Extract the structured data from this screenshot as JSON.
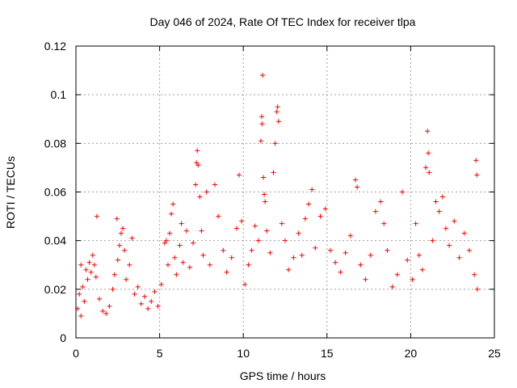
{
  "chart_data": {
    "type": "scatter",
    "title": "Day 046 of 2024, Rate Of TEC Index for receiver tlpa",
    "xlabel": "GPS time / hours",
    "ylabel": "ROTI / TECUs",
    "xlim": [
      0,
      25
    ],
    "ylim": [
      0,
      0.12
    ],
    "xticks": [
      0,
      5,
      10,
      15,
      20,
      25
    ],
    "xtick_labels": [
      "0",
      "5",
      "10",
      "15",
      "20",
      "25"
    ],
    "yticks": [
      0,
      0.02,
      0.04,
      0.06,
      0.08,
      0.1,
      0.12
    ],
    "ytick_labels": [
      "0",
      "0.02",
      "0.04",
      "0.06",
      "0.08",
      "0.1",
      "0.12"
    ],
    "grid": true,
    "marker": "plus",
    "color": "#ff0000",
    "series": [
      {
        "name": "ROTI",
        "points": [
          [
            0.1,
            0.012
          ],
          [
            0.2,
            0.018
          ],
          [
            0.3,
            0.009
          ],
          [
            0.4,
            0.021
          ],
          [
            0.5,
            0.015
          ],
          [
            0.6,
            0.028
          ],
          [
            0.7,
            0.024
          ],
          [
            0.8,
            0.031
          ],
          [
            0.9,
            0.027
          ],
          [
            1.0,
            0.034
          ],
          [
            1.1,
            0.03
          ],
          [
            1.2,
            0.025
          ],
          [
            1.25,
            0.05
          ],
          [
            1.4,
            0.016
          ],
          [
            1.6,
            0.011
          ],
          [
            1.8,
            0.01
          ],
          [
            2.0,
            0.013
          ],
          [
            2.2,
            0.02
          ],
          [
            2.3,
            0.026
          ],
          [
            2.45,
            0.049
          ],
          [
            2.5,
            0.032
          ],
          [
            2.6,
            0.038
          ],
          [
            2.7,
            0.043
          ],
          [
            2.8,
            0.045
          ],
          [
            2.9,
            0.036
          ],
          [
            3.0,
            0.024
          ],
          [
            3.2,
            0.03
          ],
          [
            3.35,
            0.041
          ],
          [
            3.5,
            0.018
          ],
          [
            3.7,
            0.021
          ],
          [
            3.9,
            0.014
          ],
          [
            4.1,
            0.017
          ],
          [
            4.3,
            0.012
          ],
          [
            4.5,
            0.015
          ],
          [
            4.7,
            0.019
          ],
          [
            4.9,
            0.013
          ],
          [
            5.1,
            0.022
          ],
          [
            5.3,
            0.039
          ],
          [
            5.4,
            0.04
          ],
          [
            5.5,
            0.03
          ],
          [
            5.6,
            0.043
          ],
          [
            5.7,
            0.051
          ],
          [
            5.8,
            0.055
          ],
          [
            5.9,
            0.033
          ],
          [
            6.0,
            0.026
          ],
          [
            6.2,
            0.038
          ],
          [
            6.4,
            0.031
          ],
          [
            6.6,
            0.044
          ],
          [
            6.8,
            0.029
          ],
          [
            7.0,
            0.039
          ],
          [
            7.15,
            0.063
          ],
          [
            7.2,
            0.072
          ],
          [
            7.25,
            0.077
          ],
          [
            7.3,
            0.071
          ],
          [
            7.4,
            0.058
          ],
          [
            7.5,
            0.044
          ],
          [
            7.6,
            0.034
          ],
          [
            7.8,
            0.06
          ],
          [
            8.0,
            0.03
          ],
          [
            8.3,
            0.063
          ],
          [
            8.5,
            0.05
          ],
          [
            8.8,
            0.036
          ],
          [
            9.0,
            0.027
          ],
          [
            9.3,
            0.033
          ],
          [
            9.6,
            0.045
          ],
          [
            9.75,
            0.067
          ],
          [
            9.9,
            0.048
          ],
          [
            10.1,
            0.022
          ],
          [
            10.3,
            0.03
          ],
          [
            10.5,
            0.036
          ],
          [
            10.7,
            0.046
          ],
          [
            10.9,
            0.04
          ],
          [
            11.05,
            0.081
          ],
          [
            11.1,
            0.091
          ],
          [
            11.12,
            0.088
          ],
          [
            11.15,
            0.108
          ],
          [
            11.2,
            0.066
          ],
          [
            11.25,
            0.059
          ],
          [
            11.3,
            0.056
          ],
          [
            11.4,
            0.044
          ],
          [
            11.6,
            0.035
          ],
          [
            11.8,
            0.068
          ],
          [
            11.9,
            0.08
          ],
          [
            12.0,
            0.093
          ],
          [
            12.05,
            0.095
          ],
          [
            12.1,
            0.089
          ],
          [
            12.3,
            0.047
          ],
          [
            12.5,
            0.04
          ],
          [
            12.7,
            0.028
          ],
          [
            13.0,
            0.033
          ],
          [
            13.3,
            0.043
          ],
          [
            13.5,
            0.034
          ],
          [
            13.7,
            0.049
          ],
          [
            13.9,
            0.055
          ],
          [
            14.1,
            0.061
          ],
          [
            14.3,
            0.037
          ],
          [
            14.6,
            0.05
          ],
          [
            14.9,
            0.053
          ],
          [
            15.2,
            0.036
          ],
          [
            15.5,
            0.031
          ],
          [
            15.8,
            0.027
          ],
          [
            16.1,
            0.035
          ],
          [
            16.4,
            0.042
          ],
          [
            16.7,
            0.065
          ],
          [
            16.8,
            0.062
          ],
          [
            17.0,
            0.03
          ],
          [
            17.3,
            0.024
          ],
          [
            17.6,
            0.034
          ],
          [
            17.9,
            0.052
          ],
          [
            18.2,
            0.056
          ],
          [
            18.4,
            0.047
          ],
          [
            18.6,
            0.036
          ],
          [
            18.9,
            0.021
          ],
          [
            19.2,
            0.026
          ],
          [
            19.5,
            0.06
          ],
          [
            19.8,
            0.032
          ],
          [
            20.1,
            0.024
          ],
          [
            20.3,
            0.047
          ],
          [
            20.5,
            0.034
          ],
          [
            20.7,
            0.028
          ],
          [
            20.9,
            0.07
          ],
          [
            21.0,
            0.085
          ],
          [
            21.05,
            0.076
          ],
          [
            21.1,
            0.068
          ],
          [
            21.3,
            0.04
          ],
          [
            21.5,
            0.056
          ],
          [
            21.7,
            0.052
          ],
          [
            21.9,
            0.058
          ],
          [
            22.1,
            0.045
          ],
          [
            22.3,
            0.038
          ],
          [
            22.6,
            0.048
          ],
          [
            22.9,
            0.033
          ],
          [
            23.2,
            0.043
          ],
          [
            23.5,
            0.036
          ],
          [
            23.8,
            0.026
          ],
          [
            23.9,
            0.073
          ],
          [
            23.95,
            0.067
          ],
          [
            23.98,
            0.02
          ],
          [
            0.3,
            0.03
          ],
          [
            6.3,
            0.047
          ]
        ]
      }
    ]
  }
}
